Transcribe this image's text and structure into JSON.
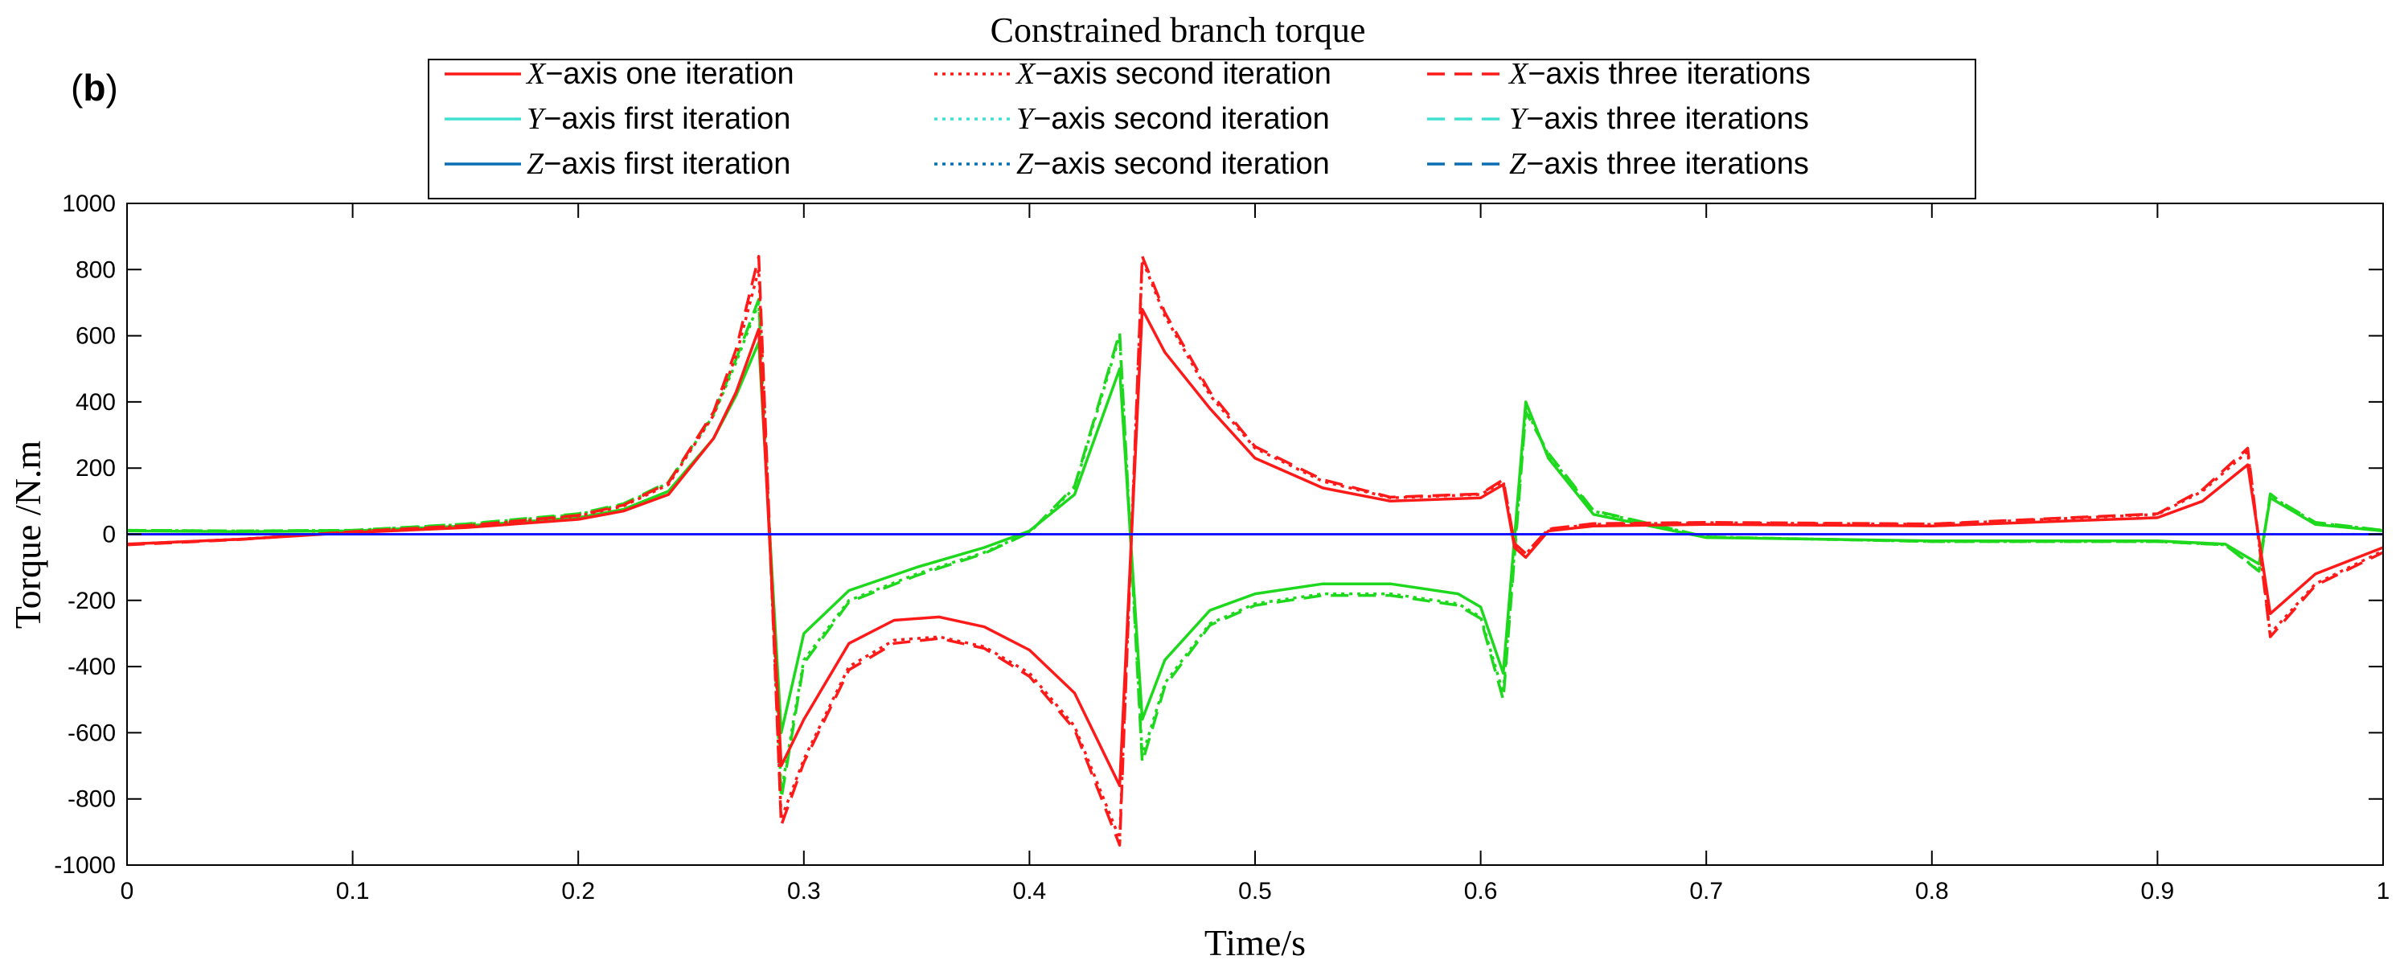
{
  "panel_label": {
    "open": "(",
    "letter": "b",
    "close": ")"
  },
  "chart_data": {
    "type": "line",
    "title": "Constrained branch torque",
    "xlabel": "Time/s",
    "ylabel": "Torque /N.m",
    "xlim": [
      0,
      1
    ],
    "ylim": [
      -1000,
      1000
    ],
    "xticks": [
      0,
      0.1,
      0.2,
      0.3,
      0.4,
      0.5,
      0.6,
      0.7,
      0.8,
      0.9,
      1
    ],
    "xtick_labels": [
      "0",
      "0.1",
      "0.2",
      "0.3",
      "0.4",
      "0.5",
      "0.6",
      "0.7",
      "0.8",
      "0.9",
      "1"
    ],
    "yticks": [
      -1000,
      -800,
      -600,
      -400,
      -200,
      0,
      200,
      400,
      600,
      800,
      1000
    ],
    "ytick_labels": [
      "-1000",
      "-800",
      "-600",
      "-400",
      "-200",
      "0",
      "200",
      "400",
      "600",
      "800",
      "1000"
    ],
    "grid": false,
    "legend_position": "top-center",
    "colors": {
      "x": "#ff1a1a",
      "y_legend": "#40e0d0",
      "y_plot": "#1ed81e",
      "z": "#1414ff",
      "z_legend": "#0a6eb4"
    },
    "series": [
      {
        "name": "X-axis one iteration",
        "axis_letter": "X",
        "rest": "−axis one iteration",
        "color_key": "x",
        "style": "solid",
        "x": [
          0,
          0.05,
          0.1,
          0.15,
          0.2,
          0.22,
          0.24,
          0.26,
          0.27,
          0.28,
          0.29,
          0.3,
          0.32,
          0.34,
          0.36,
          0.38,
          0.4,
          0.42,
          0.44,
          0.45,
          0.46,
          0.48,
          0.5,
          0.53,
          0.56,
          0.6,
          0.61,
          0.615,
          0.62,
          0.63,
          0.65,
          0.7,
          0.8,
          0.9,
          0.92,
          0.94,
          0.95,
          0.97,
          1
        ],
        "values": [
          -30,
          -15,
          5,
          20,
          45,
          70,
          120,
          290,
          430,
          620,
          -700,
          -560,
          -330,
          -260,
          -250,
          -280,
          -350,
          -480,
          -760,
          680,
          550,
          380,
          230,
          140,
          100,
          110,
          150,
          -40,
          -70,
          10,
          25,
          30,
          25,
          50,
          100,
          210,
          -240,
          -120,
          -40
        ]
      },
      {
        "name": "X-axis second iteration",
        "axis_letter": "X",
        "rest": "−axis second iteration",
        "color_key": "x",
        "style": "dotted",
        "x": [
          0,
          0.05,
          0.1,
          0.15,
          0.2,
          0.22,
          0.24,
          0.26,
          0.27,
          0.28,
          0.29,
          0.3,
          0.32,
          0.34,
          0.36,
          0.38,
          0.4,
          0.42,
          0.44,
          0.45,
          0.46,
          0.48,
          0.5,
          0.53,
          0.56,
          0.6,
          0.61,
          0.615,
          0.62,
          0.63,
          0.65,
          0.7,
          0.8,
          0.9,
          0.92,
          0.94,
          0.95,
          0.97,
          1
        ],
        "values": [
          -30,
          -15,
          8,
          25,
          55,
          85,
          150,
          360,
          540,
          800,
          -860,
          -680,
          -400,
          -320,
          -310,
          -340,
          -420,
          -580,
          -920,
          830,
          660,
          420,
          260,
          160,
          110,
          120,
          160,
          -30,
          -60,
          15,
          30,
          35,
          30,
          60,
          130,
          250,
          -300,
          -150,
          -50
        ]
      },
      {
        "name": "X-axis three iterations",
        "axis_letter": "X",
        "rest": "−axis three iterations",
        "color_key": "x",
        "style": "dashed",
        "x": [
          0,
          0.05,
          0.1,
          0.15,
          0.2,
          0.22,
          0.24,
          0.26,
          0.27,
          0.28,
          0.29,
          0.3,
          0.32,
          0.34,
          0.36,
          0.38,
          0.4,
          0.42,
          0.44,
          0.45,
          0.46,
          0.48,
          0.5,
          0.53,
          0.56,
          0.6,
          0.61,
          0.615,
          0.62,
          0.63,
          0.65,
          0.7,
          0.8,
          0.9,
          0.92,
          0.94,
          0.95,
          0.97,
          1
        ],
        "values": [
          -32,
          -16,
          8,
          26,
          57,
          88,
          155,
          370,
          560,
          840,
          -880,
          -690,
          -410,
          -330,
          -315,
          -345,
          -430,
          -590,
          -940,
          840,
          670,
          430,
          265,
          165,
          112,
          122,
          165,
          -28,
          -58,
          16,
          32,
          36,
          31,
          62,
          135,
          260,
          -310,
          -155,
          -55
        ]
      },
      {
        "name": "Y-axis first iteration",
        "axis_letter": "Y",
        "rest": "−axis first iteration",
        "color_key": "y_plot",
        "legend_color_key": "y_legend",
        "style": "solid",
        "x": [
          0,
          0.05,
          0.1,
          0.15,
          0.2,
          0.22,
          0.24,
          0.26,
          0.27,
          0.28,
          0.29,
          0.3,
          0.32,
          0.35,
          0.38,
          0.4,
          0.42,
          0.44,
          0.45,
          0.46,
          0.48,
          0.5,
          0.53,
          0.56,
          0.59,
          0.6,
          0.61,
          0.62,
          0.63,
          0.65,
          0.7,
          0.8,
          0.9,
          0.93,
          0.945,
          0.95,
          0.955,
          0.97,
          1
        ],
        "values": [
          10,
          8,
          10,
          25,
          50,
          75,
          130,
          290,
          420,
          580,
          -600,
          -300,
          -170,
          -100,
          -40,
          10,
          120,
          500,
          -560,
          -380,
          -230,
          -180,
          -150,
          -150,
          -180,
          -220,
          -420,
          400,
          230,
          60,
          -10,
          -20,
          -20,
          -30,
          -90,
          110,
          90,
          30,
          10
        ]
      },
      {
        "name": "Y-axis second iteration",
        "axis_letter": "Y",
        "rest": "−axis second iteration",
        "color_key": "y_plot",
        "legend_color_key": "y_legend",
        "style": "dotted",
        "x": [
          0,
          0.05,
          0.1,
          0.15,
          0.2,
          0.22,
          0.24,
          0.26,
          0.27,
          0.28,
          0.29,
          0.3,
          0.32,
          0.35,
          0.38,
          0.4,
          0.42,
          0.44,
          0.45,
          0.46,
          0.48,
          0.5,
          0.53,
          0.56,
          0.59,
          0.6,
          0.61,
          0.62,
          0.63,
          0.65,
          0.7,
          0.8,
          0.9,
          0.93,
          0.945,
          0.95,
          0.955,
          0.97,
          1
        ],
        "values": [
          12,
          10,
          12,
          30,
          60,
          90,
          155,
          360,
          520,
          700,
          -780,
          -380,
          -200,
          -120,
          -55,
          5,
          140,
          600,
          -670,
          -450,
          -270,
          -210,
          -180,
          -180,
          -210,
          -250,
          -480,
          380,
          240,
          70,
          -8,
          -22,
          -22,
          -32,
          -110,
          120,
          95,
          35,
          12
        ]
      },
      {
        "name": "Y-axis three iterations",
        "axis_letter": "Y",
        "rest": "−axis three iterations",
        "color_key": "y_plot",
        "legend_color_key": "y_legend",
        "style": "dashed",
        "x": [
          0,
          0.05,
          0.1,
          0.15,
          0.2,
          0.22,
          0.24,
          0.26,
          0.27,
          0.28,
          0.29,
          0.3,
          0.32,
          0.35,
          0.38,
          0.4,
          0.42,
          0.44,
          0.45,
          0.46,
          0.48,
          0.5,
          0.53,
          0.56,
          0.59,
          0.6,
          0.61,
          0.62,
          0.63,
          0.65,
          0.7,
          0.8,
          0.9,
          0.93,
          0.945,
          0.95,
          0.955,
          0.97,
          1
        ],
        "values": [
          12,
          10,
          12,
          31,
          62,
          92,
          158,
          365,
          530,
          710,
          -800,
          -390,
          -205,
          -125,
          -58,
          5,
          145,
          610,
          -690,
          -460,
          -275,
          -215,
          -185,
          -185,
          -215,
          -255,
          -500,
          370,
          245,
          72,
          -8,
          -22,
          -22,
          -32,
          -112,
          122,
          96,
          36,
          12
        ]
      },
      {
        "name": "Z-axis first iteration",
        "axis_letter": "Z",
        "rest": "−axis first iteration",
        "color_key": "z",
        "legend_color_key": "z_legend",
        "style": "solid",
        "x": [
          0,
          1
        ],
        "values": [
          0,
          0
        ]
      },
      {
        "name": "Z-axis second iteration",
        "axis_letter": "Z",
        "rest": "−axis second iteration",
        "color_key": "z",
        "legend_color_key": "z_legend",
        "style": "dotted",
        "x": [
          0,
          1
        ],
        "values": [
          0,
          0
        ]
      },
      {
        "name": "Z-axis three iterations",
        "axis_letter": "Z",
        "rest": "−axis three iterations",
        "color_key": "z",
        "legend_color_key": "z_legend",
        "style": "dashed",
        "x": [
          0,
          1
        ],
        "values": [
          0,
          0
        ]
      }
    ]
  }
}
